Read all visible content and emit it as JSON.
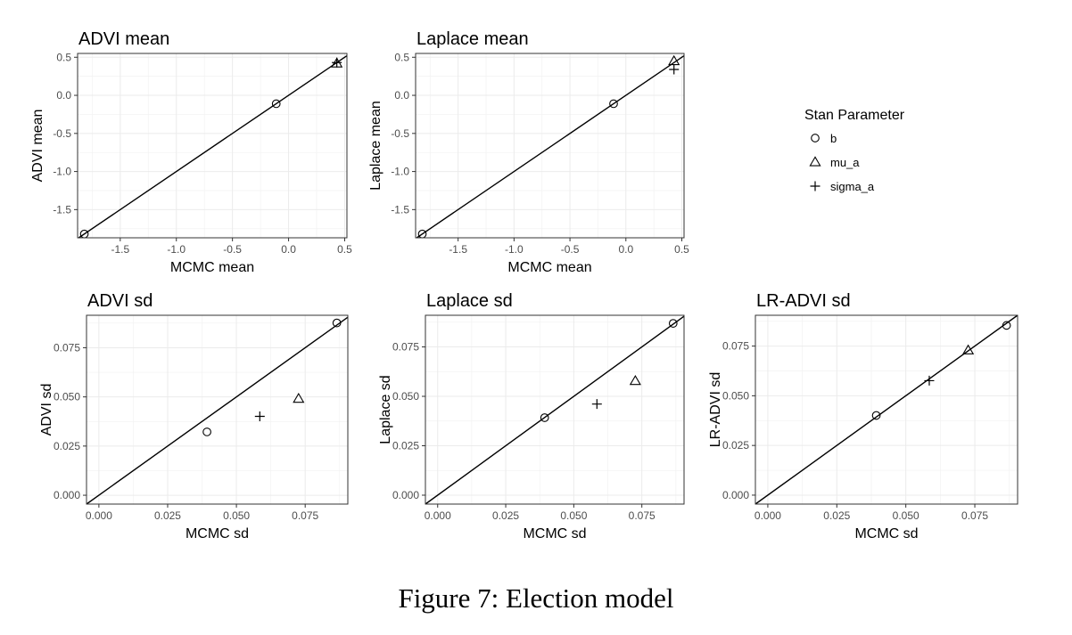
{
  "figure": {
    "caption": "Figure 7: Election model"
  },
  "legend": {
    "title": "Stan Parameter",
    "placement": "right",
    "entries": [
      {
        "label": "b",
        "shape": "circle"
      },
      {
        "label": "mu_a",
        "shape": "triangle"
      },
      {
        "label": "sigma_a",
        "shape": "plus"
      }
    ]
  },
  "chart_data": [
    {
      "type": "scatter",
      "title": "ADVI mean",
      "xlabel": "MCMC mean",
      "ylabel": "ADVI mean",
      "xlim": [
        -1.88,
        0.52
      ],
      "ylim": [
        -1.87,
        0.55
      ],
      "xticks": [
        -1.5,
        -1.0,
        -0.5,
        0.0,
        0.5
      ],
      "xtick_labels": [
        "-1.5",
        "-1.0",
        "-0.5",
        "0.0",
        "0.5"
      ],
      "yticks": [
        -1.5,
        -1.0,
        -0.5,
        0.0,
        0.5
      ],
      "ytick_labels": [
        "-1.5",
        "-1.0",
        "-0.5",
        "0.0",
        "0.5"
      ],
      "grid": true,
      "identity_line": true,
      "series": [
        {
          "name": "b",
          "shape": "circle",
          "points": [
            [
              -1.82,
              -1.82
            ],
            [
              -0.11,
              -0.11
            ]
          ]
        },
        {
          "name": "mu_a",
          "shape": "triangle",
          "points": [
            [
              0.43,
              0.42
            ]
          ]
        },
        {
          "name": "sigma_a",
          "shape": "plus",
          "points": [
            [
              0.43,
              0.43
            ]
          ]
        }
      ]
    },
    {
      "type": "scatter",
      "title": "Laplace mean",
      "xlabel": "MCMC mean",
      "ylabel": "Laplace mean",
      "xlim": [
        -1.88,
        0.52
      ],
      "ylim": [
        -1.87,
        0.55
      ],
      "xticks": [
        -1.5,
        -1.0,
        -0.5,
        0.0,
        0.5
      ],
      "xtick_labels": [
        "-1.5",
        "-1.0",
        "-0.5",
        "0.0",
        "0.5"
      ],
      "yticks": [
        -1.5,
        -1.0,
        -0.5,
        0.0,
        0.5
      ],
      "ytick_labels": [
        "-1.5",
        "-1.0",
        "-0.5",
        "0.0",
        "0.5"
      ],
      "grid": true,
      "identity_line": true,
      "series": [
        {
          "name": "b",
          "shape": "circle",
          "points": [
            [
              -1.82,
              -1.82
            ],
            [
              -0.11,
              -0.11
            ]
          ]
        },
        {
          "name": "mu_a",
          "shape": "triangle",
          "points": [
            [
              0.43,
              0.45
            ]
          ]
        },
        {
          "name": "sigma_a",
          "shape": "plus",
          "points": [
            [
              0.43,
              0.34
            ]
          ]
        }
      ]
    },
    {
      "type": "scatter",
      "title": "ADVI sd",
      "xlabel": "MCMC sd",
      "ylabel": "ADVI sd",
      "xlim": [
        -0.0045,
        0.0905
      ],
      "ylim": [
        -0.0045,
        0.0915
      ],
      "xticks": [
        0.0,
        0.025,
        0.05,
        0.075
      ],
      "xtick_labels": [
        "0.000",
        "0.025",
        "0.050",
        "0.075"
      ],
      "yticks": [
        0.0,
        0.025,
        0.05,
        0.075
      ],
      "ytick_labels": [
        "0.000",
        "0.025",
        "0.050",
        "0.075"
      ],
      "grid": true,
      "identity_line": true,
      "series": [
        {
          "name": "b",
          "shape": "circle",
          "points": [
            [
              0.0393,
              0.0322
            ],
            [
              0.0865,
              0.0876
            ]
          ]
        },
        {
          "name": "mu_a",
          "shape": "triangle",
          "points": [
            [
              0.0726,
              0.0491
            ]
          ]
        },
        {
          "name": "sigma_a",
          "shape": "plus",
          "points": [
            [
              0.0585,
              0.0401
            ]
          ]
        }
      ]
    },
    {
      "type": "scatter",
      "title": "Laplace sd",
      "xlabel": "MCMC sd",
      "ylabel": "Laplace sd",
      "xlim": [
        -0.0045,
        0.0905
      ],
      "ylim": [
        -0.0045,
        0.091
      ],
      "xticks": [
        0.0,
        0.025,
        0.05,
        0.075
      ],
      "xtick_labels": [
        "0.000",
        "0.025",
        "0.050",
        "0.075"
      ],
      "yticks": [
        0.0,
        0.025,
        0.05,
        0.075
      ],
      "ytick_labels": [
        "0.000",
        "0.025",
        "0.050",
        "0.075"
      ],
      "grid": true,
      "identity_line": true,
      "series": [
        {
          "name": "b",
          "shape": "circle",
          "points": [
            [
              0.0393,
              0.0392
            ],
            [
              0.0865,
              0.0869
            ]
          ]
        },
        {
          "name": "mu_a",
          "shape": "triangle",
          "points": [
            [
              0.0726,
              0.0578
            ]
          ]
        },
        {
          "name": "sigma_a",
          "shape": "plus",
          "points": [
            [
              0.0585,
              0.0461
            ]
          ]
        }
      ]
    },
    {
      "type": "scatter",
      "title": "LR-ADVI sd",
      "xlabel": "MCMC sd",
      "ylabel": "LR-ADVI sd",
      "xlim": [
        -0.0045,
        0.0905
      ],
      "ylim": [
        -0.0045,
        0.0905
      ],
      "xticks": [
        0.0,
        0.025,
        0.05,
        0.075
      ],
      "xtick_labels": [
        "0.000",
        "0.025",
        "0.050",
        "0.075"
      ],
      "yticks": [
        0.0,
        0.025,
        0.05,
        0.075
      ],
      "ytick_labels": [
        "0.000",
        "0.025",
        "0.050",
        "0.075"
      ],
      "grid": true,
      "identity_line": true,
      "series": [
        {
          "name": "b",
          "shape": "circle",
          "points": [
            [
              0.0393,
              0.0401
            ],
            [
              0.0865,
              0.0854
            ]
          ]
        },
        {
          "name": "mu_a",
          "shape": "triangle",
          "points": [
            [
              0.0726,
              0.0729
            ]
          ]
        },
        {
          "name": "sigma_a",
          "shape": "plus",
          "points": [
            [
              0.0585,
              0.0576
            ]
          ]
        }
      ]
    }
  ]
}
